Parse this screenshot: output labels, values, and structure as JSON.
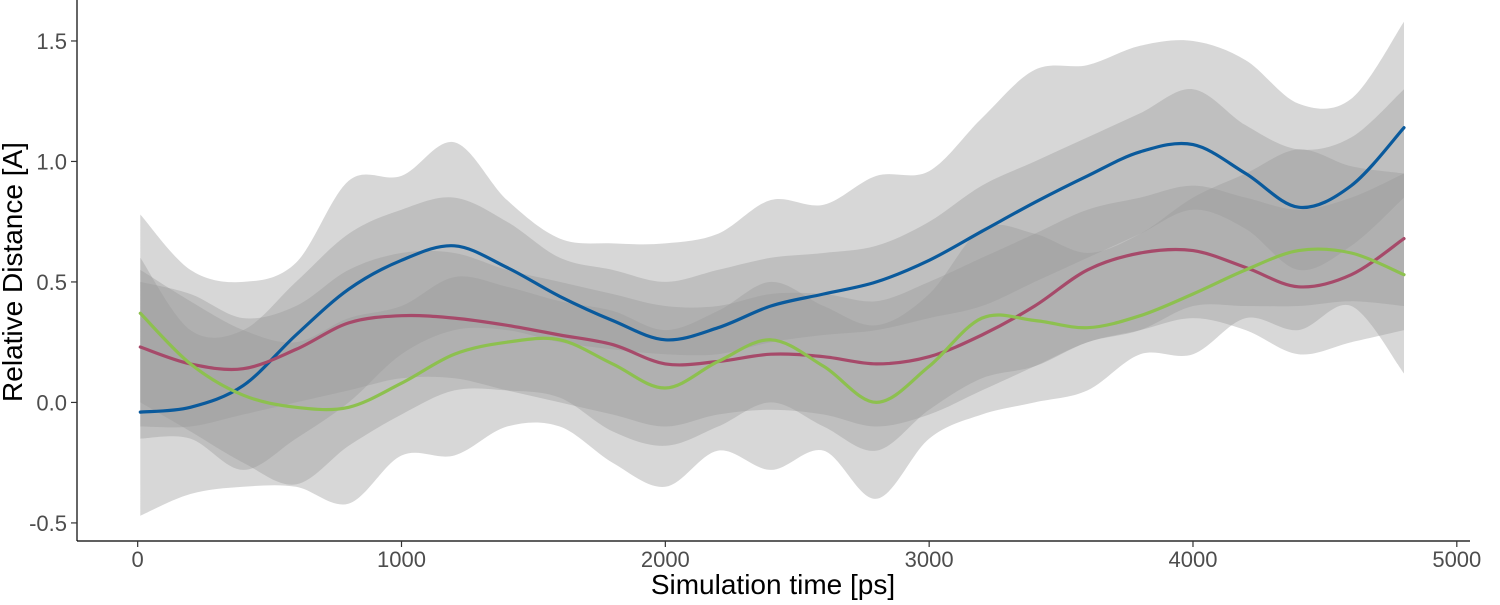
{
  "chart_data": {
    "type": "line",
    "title": "",
    "xlabel": "Simulation time [ps]",
    "ylabel": "Relative Distance [A]",
    "xlim": [
      -230,
      5050
    ],
    "ylim": [
      -0.575,
      1.67
    ],
    "xticks": [
      0,
      1000,
      2000,
      3000,
      4000,
      5000
    ],
    "xtick_labels": [
      "0",
      "1000",
      "2000",
      "3000",
      "4000",
      "5000"
    ],
    "yticks": [
      -0.5,
      0.0,
      0.5,
      1.0,
      1.5
    ],
    "ytick_labels": [
      "-0.5",
      "0.0",
      "0.5",
      "1.0",
      "1.5"
    ],
    "grid": false,
    "legend": "none",
    "x": [
      10,
      200,
      400,
      600,
      800,
      1000,
      1200,
      1400,
      1600,
      1800,
      2000,
      2200,
      2400,
      2600,
      2800,
      3000,
      3200,
      3400,
      3600,
      3800,
      4000,
      4200,
      4400,
      4600,
      4800
    ],
    "series": [
      {
        "color": "#0a5a9c",
        "values": [
          -0.04,
          -0.02,
          0.07,
          0.28,
          0.47,
          0.59,
          0.65,
          0.56,
          0.44,
          0.34,
          0.26,
          0.31,
          0.4,
          0.45,
          0.5,
          0.59,
          0.71,
          0.83,
          0.94,
          1.04,
          1.07,
          0.95,
          0.81,
          0.9,
          1.14
        ],
        "band_inner_lower": [
          -0.15,
          -0.15,
          -0.28,
          -0.15,
          0.0,
          0.2,
          0.3,
          0.3,
          0.25,
          0.22,
          0.2,
          0.2,
          0.25,
          0.28,
          0.3,
          0.35,
          0.4,
          0.5,
          0.6,
          0.7,
          0.8,
          0.72,
          0.55,
          0.65,
          0.85
        ],
        "band_inner_upper": [
          0.6,
          0.3,
          0.3,
          0.5,
          0.7,
          0.8,
          0.85,
          0.75,
          0.6,
          0.55,
          0.5,
          0.55,
          0.6,
          0.62,
          0.65,
          0.75,
          0.9,
          1.0,
          1.1,
          1.2,
          1.3,
          1.15,
          1.05,
          1.1,
          1.3
        ],
        "band_outer_lower": [
          -0.47,
          -0.38,
          -0.35,
          -0.35,
          -0.42,
          -0.22,
          -0.22,
          -0.1,
          -0.1,
          -0.25,
          -0.35,
          -0.2,
          -0.28,
          -0.2,
          -0.4,
          -0.15,
          -0.05,
          0.0,
          0.05,
          0.2,
          0.2,
          0.35,
          0.3,
          0.4,
          0.12
        ],
        "band_outer_upper": [
          0.78,
          0.55,
          0.5,
          0.58,
          0.92,
          0.94,
          1.08,
          0.84,
          0.68,
          0.66,
          0.66,
          0.7,
          0.84,
          0.82,
          0.94,
          0.96,
          1.18,
          1.38,
          1.4,
          1.48,
          1.5,
          1.42,
          1.24,
          1.26,
          1.58
        ]
      },
      {
        "color": "#a64a6a",
        "values": [
          0.23,
          0.16,
          0.14,
          0.22,
          0.33,
          0.36,
          0.35,
          0.32,
          0.28,
          0.24,
          0.16,
          0.17,
          0.2,
          0.19,
          0.16,
          0.19,
          0.28,
          0.4,
          0.55,
          0.62,
          0.63,
          0.56,
          0.48,
          0.53,
          0.68
        ],
        "band_inner_lower": [
          -0.1,
          -0.1,
          -0.05,
          0.0,
          0.05,
          0.1,
          0.1,
          0.05,
          0.0,
          -0.05,
          -0.1,
          -0.05,
          -0.03,
          -0.05,
          -0.1,
          -0.05,
          0.05,
          0.15,
          0.25,
          0.3,
          0.35,
          0.3,
          0.2,
          0.25,
          0.3
        ],
        "band_inner_upper": [
          0.5,
          0.45,
          0.35,
          0.4,
          0.55,
          0.62,
          0.62,
          0.55,
          0.5,
          0.45,
          0.4,
          0.4,
          0.45,
          0.45,
          0.42,
          0.5,
          0.6,
          0.7,
          0.8,
          0.85,
          0.9,
          0.85,
          0.8,
          0.85,
          0.95
        ]
      },
      {
        "color": "#8dc04f",
        "values": [
          0.37,
          0.16,
          0.03,
          -0.02,
          -0.02,
          0.08,
          0.2,
          0.25,
          0.26,
          0.16,
          0.06,
          0.17,
          0.26,
          0.15,
          0.0,
          0.15,
          0.35,
          0.34,
          0.31,
          0.36,
          0.45,
          0.55,
          0.63,
          0.62,
          0.53
        ],
        "band_inner_lower": [
          0.0,
          -0.12,
          -0.25,
          -0.34,
          -0.18,
          -0.05,
          0.05,
          0.05,
          0.02,
          -0.12,
          -0.18,
          -0.1,
          0.0,
          -0.1,
          -0.2,
          -0.03,
          0.1,
          0.15,
          0.25,
          0.3,
          0.4,
          0.4,
          0.4,
          0.42,
          0.4
        ],
        "band_inner_upper": [
          0.55,
          0.42,
          0.3,
          0.25,
          0.35,
          0.4,
          0.52,
          0.48,
          0.42,
          0.38,
          0.3,
          0.38,
          0.5,
          0.4,
          0.32,
          0.45,
          0.72,
          0.7,
          0.62,
          0.7,
          0.85,
          0.95,
          1.05,
          0.98,
          0.95
        ]
      }
    ]
  }
}
